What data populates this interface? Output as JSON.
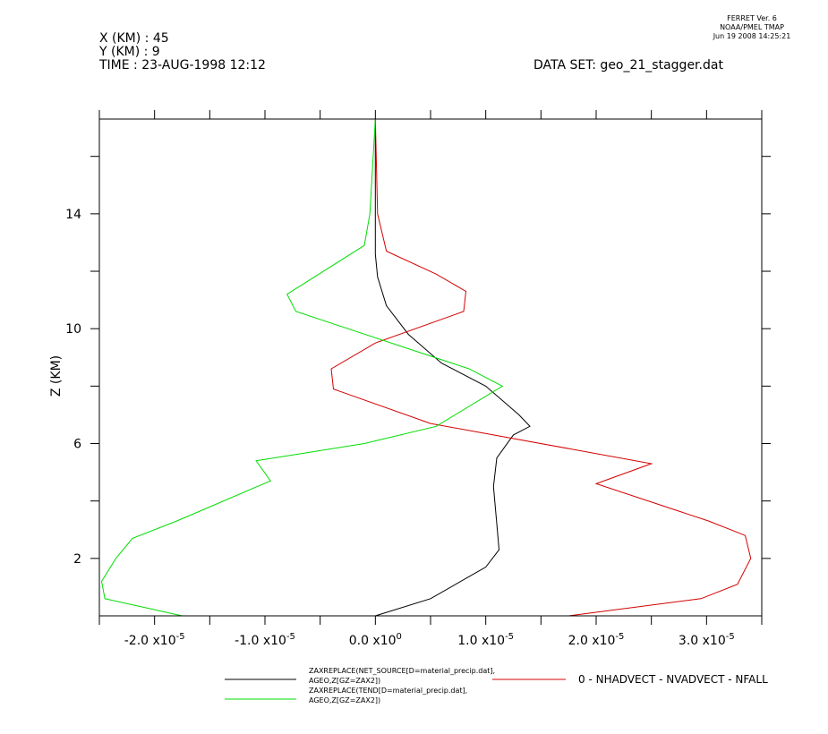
{
  "header": {
    "ferret_version": "FERRET Ver. 6",
    "lab": "NOAA/PMEL TMAP",
    "date_time": "Jun 19 2008 14:25:21",
    "x_info": "X (KM) : 45",
    "y_info": "Y (KM) : 9",
    "time_info": "TIME : 23-AUG-1998 12:12",
    "dataset": "DATA SET: geo_21_stagger.dat"
  },
  "chart_data": {
    "type": "line",
    "ylabel": "Z (KM)",
    "xlim": [
      -2.5e-05,
      3.5e-05
    ],
    "ylim": [
      0,
      17.3
    ],
    "x_ticks": [
      -2.5e-05,
      -2e-05,
      -1.5e-05,
      -1e-05,
      -5e-06,
      0,
      5e-06,
      1e-05,
      1.5e-05,
      2e-05,
      2.5e-05,
      3e-05,
      3.5e-05
    ],
    "x_tick_labels": [
      {
        "value": -2e-05,
        "mant": "-2.0 x10",
        "exp": "-5"
      },
      {
        "value": -1e-05,
        "mant": "-1.0 x10",
        "exp": "-5"
      },
      {
        "value": 0,
        "mant": "0.0 x10",
        "exp": "0"
      },
      {
        "value": 1e-05,
        "mant": "1.0 x10",
        "exp": "-5"
      },
      {
        "value": 2e-05,
        "mant": "2.0 x10",
        "exp": "-5"
      },
      {
        "value": 3e-05,
        "mant": "3.0 x10",
        "exp": "-5"
      }
    ],
    "y_ticks": [
      2,
      4,
      6,
      8,
      10,
      12,
      14,
      16
    ],
    "y_tick_labels": [
      "2",
      "6",
      "10",
      "14"
    ],
    "series": [
      {
        "name": "ZAXREPLACE(NET_SOURCE[D=material_precip.dat],",
        "name_line2": "AGEO,Z[GZ=ZAX2])",
        "color": "#000000",
        "x": [
          0.0,
          5e-06,
          1e-05,
          1.12e-05,
          1.1e-05,
          1.07e-05,
          1.1e-05,
          1.25e-05,
          1.4e-05,
          1.3e-05,
          1e-05,
          6e-06,
          3e-06,
          1e-06,
          2e-07,
          0.0,
          0.0,
          0.0,
          0.0
        ],
        "y": [
          0.0,
          0.6,
          1.7,
          2.3,
          3.2,
          4.5,
          5.5,
          6.3,
          6.6,
          7.0,
          8.0,
          8.8,
          9.8,
          10.8,
          11.8,
          12.6,
          14.0,
          16.0,
          17.3
        ]
      },
      {
        "name": "0 - NHADVECT - NVADVECT - NFALL",
        "color": "#d40000",
        "x": [
          1.75e-05,
          2.95e-05,
          3.28e-05,
          3.4e-05,
          3.35e-05,
          3.02e-05,
          2e-05,
          2.5e-05,
          5e-06,
          -3.8e-06,
          -4e-06,
          0.0,
          8e-06,
          8.2e-06,
          5.5e-06,
          1e-06,
          2e-07,
          0.0
        ],
        "y": [
          0.0,
          0.6,
          1.1,
          2.0,
          2.8,
          3.3,
          4.6,
          5.3,
          6.7,
          7.9,
          8.6,
          9.5,
          10.6,
          11.3,
          11.9,
          12.7,
          14.0,
          17.3
        ]
      },
      {
        "name": "ZAXREPLACE(TEND[D=material_precip.dat],",
        "name_line2": "AGEO,Z[GZ=ZAX2])",
        "color": "#00dd00",
        "x": [
          -1.75e-05,
          -2.45e-05,
          -2.48e-05,
          -2.35e-05,
          -2.2e-05,
          -1.8e-05,
          -9.5e-06,
          -1.08e-05,
          -1e-06,
          5.5e-06,
          1.15e-05,
          8.5e-06,
          -7.2e-06,
          -8e-06,
          -1e-06,
          -5e-07,
          0.0
        ],
        "y": [
          0.0,
          0.6,
          1.2,
          2.0,
          2.7,
          3.3,
          4.7,
          5.4,
          6.0,
          6.6,
          8.0,
          8.6,
          10.6,
          11.2,
          12.9,
          14.0,
          17.3
        ]
      }
    ]
  }
}
